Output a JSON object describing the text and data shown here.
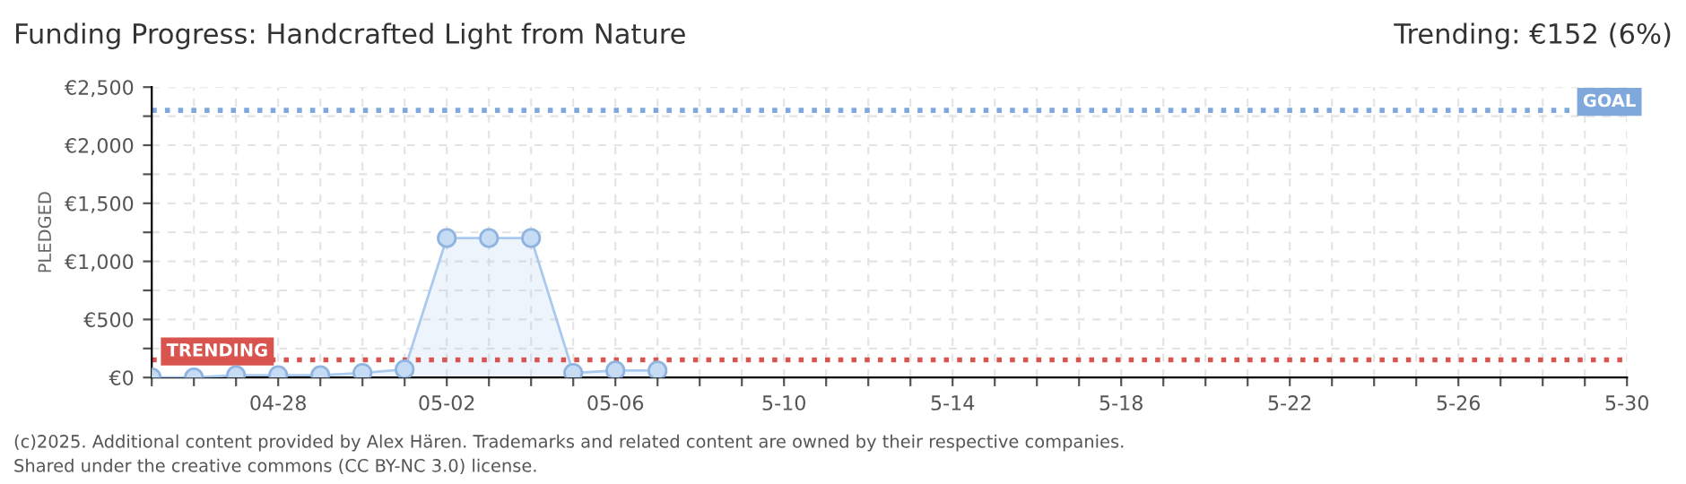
{
  "chart_data": {
    "type": "area",
    "title": "Funding Progress: Handcrafted Light from Nature",
    "subtitle": "Trending: €152 (6%)",
    "ylabel": "PLEDGED",
    "x": [
      "2025-04-25",
      "2025-04-26",
      "2025-04-27",
      "2025-04-28",
      "2025-04-29",
      "2025-04-30",
      "2025-05-01",
      "2025-05-02",
      "2025-05-03",
      "2025-05-04",
      "2025-05-05",
      "2025-05-06",
      "2025-05-07"
    ],
    "series": [
      {
        "color": "#a9c9ee",
        "values": [
          0,
          0,
          20,
          20,
          20,
          40,
          70,
          1200,
          1200,
          1200,
          40,
          60,
          60
        ]
      }
    ],
    "marker": "circle",
    "grid": true,
    "xlim": [
      "2025-04-25",
      "2025-05-30"
    ],
    "xticks": [
      {
        "value": "2025-04-25",
        "label": null
      },
      {
        "value": "2025-04-26",
        "label": null
      },
      {
        "value": "2025-04-27",
        "label": null
      },
      {
        "value": "2025-04-28",
        "label": "04-28"
      },
      {
        "value": "2025-04-29",
        "label": null
      },
      {
        "value": "2025-04-30",
        "label": null
      },
      {
        "value": "2025-05-01",
        "label": null
      },
      {
        "value": "2025-05-02",
        "label": "05-02"
      },
      {
        "value": "2025-05-03",
        "label": null
      },
      {
        "value": "2025-05-04",
        "label": null
      },
      {
        "value": "2025-05-05",
        "label": null
      },
      {
        "value": "2025-05-06",
        "label": "05-06"
      },
      {
        "value": "2025-05-07",
        "label": null
      },
      {
        "value": "2025-05-08",
        "label": null
      },
      {
        "value": "2025-05-09",
        "label": null
      },
      {
        "value": "2025-05-10",
        "label": "5-10"
      },
      {
        "value": "2025-05-11",
        "label": null
      },
      {
        "value": "2025-05-12",
        "label": null
      },
      {
        "value": "2025-05-13",
        "label": null
      },
      {
        "value": "2025-05-14",
        "label": "5-14"
      },
      {
        "value": "2025-05-15",
        "label": null
      },
      {
        "value": "2025-05-16",
        "label": null
      },
      {
        "value": "2025-05-17",
        "label": null
      },
      {
        "value": "2025-05-18",
        "label": "5-18"
      },
      {
        "value": "2025-05-19",
        "label": null
      },
      {
        "value": "2025-05-20",
        "label": null
      },
      {
        "value": "2025-05-21",
        "label": null
      },
      {
        "value": "2025-05-22",
        "label": "5-22"
      },
      {
        "value": "2025-05-23",
        "label": null
      },
      {
        "value": "2025-05-24",
        "label": null
      },
      {
        "value": "2025-05-25",
        "label": null
      },
      {
        "value": "2025-05-26",
        "label": "5-26"
      },
      {
        "value": "2025-05-27",
        "label": null
      },
      {
        "value": "2025-05-28",
        "label": null
      },
      {
        "value": "2025-05-29",
        "label": null
      },
      {
        "value": "2025-05-30",
        "label": "5-30"
      }
    ],
    "ylim": [
      0,
      2500
    ],
    "yticks": [
      {
        "value": 0,
        "label": "€0"
      },
      {
        "value": 250,
        "label": null
      },
      {
        "value": 500,
        "label": "€500"
      },
      {
        "value": 750,
        "label": null
      },
      {
        "value": 1000,
        "label": "€1,000"
      },
      {
        "value": 1250,
        "label": null
      },
      {
        "value": 1500,
        "label": "€1,500"
      },
      {
        "value": 1750,
        "label": null
      },
      {
        "value": 2000,
        "label": "€2,000"
      },
      {
        "value": 2250,
        "label": null
      },
      {
        "value": 2500,
        "label": "€2,500"
      }
    ],
    "ref_lines": [
      {
        "axis": "y",
        "value": 2300,
        "label": "GOAL",
        "color": "#7fa8dc",
        "line_style": "dotted"
      },
      {
        "axis": "y",
        "value": 152,
        "label": "TRENDING",
        "color": "#d9534f",
        "line_style": "dotted"
      }
    ],
    "annotations": [
      "(c)2025. Additional content provided by Alex Hären. Trademarks and related content are owned by their respective companies.",
      "Shared under the creative commons (CC BY-NC 3.0) license."
    ]
  }
}
